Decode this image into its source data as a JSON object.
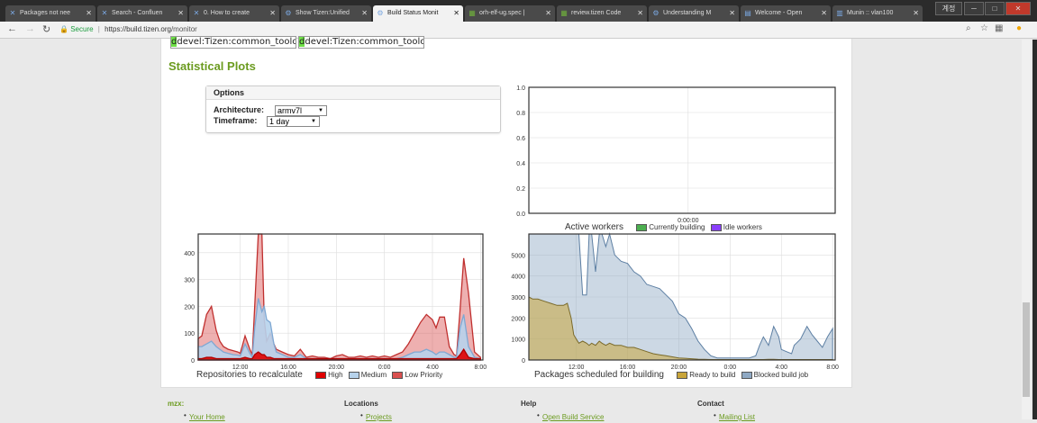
{
  "browser": {
    "tabs": [
      {
        "label": "Packages not nee",
        "icon": "X"
      },
      {
        "label": "Search - Confluen",
        "icon": "X"
      },
      {
        "label": "0. How to create",
        "icon": "X"
      },
      {
        "label": "Show Tizen:Unified",
        "icon": "gear"
      },
      {
        "label": "Build Status Monit",
        "icon": "gear"
      },
      {
        "label": "orh-elf-ug.spec |",
        "icon": "grid"
      },
      {
        "label": "review.tizen Code",
        "icon": "grid"
      },
      {
        "label": "Understanding M",
        "icon": "gear"
      },
      {
        "label": "Welcome - Open",
        "icon": "doc"
      },
      {
        "label": "Munin :: vlan100",
        "icon": "chart"
      }
    ],
    "active_tab": 4,
    "tab_close": "✕",
    "window_user": "계정",
    "secure_label": "Secure",
    "separator": "|",
    "url_host": "https://build.tizen.org",
    "url_path": "/monitor"
  },
  "page": {
    "package_fields": [
      "devel:Tizen:common_toolcha",
      "devel:Tizen:common_toolcha"
    ],
    "section_title": "Statistical Plots",
    "options": {
      "title": "Options",
      "architecture_label": "Architecture:",
      "architecture_value": "armv7l",
      "timeframe_label": "Timeframe:",
      "timeframe_value": "1 day"
    }
  },
  "colors": {
    "accent": "#6b9b1f",
    "high": "#e00000",
    "medium": "#b7d3ec",
    "low": "#d9504f",
    "ready": "#c9a53a",
    "blocked": "#8fa9c4",
    "currently_building": "#4caf50",
    "idle_workers": "#8a3ffc"
  },
  "chart_data": [
    {
      "type": "line",
      "title": "Active workers",
      "x_ticks": [
        "0:00:00"
      ],
      "ylim": [
        0,
        1.0
      ],
      "y_ticks": [
        "0.0",
        "0.2",
        "0.4",
        "0.6",
        "0.8",
        "1.0"
      ],
      "legend": [
        "Currently building",
        "Idle workers"
      ],
      "series": []
    },
    {
      "type": "area",
      "title": "Repositories to recalculate",
      "x_ticks": [
        "12:00",
        "16:00",
        "20:00",
        "0:00",
        "4:00",
        "8:00"
      ],
      "x_tick_hours": [
        12,
        16,
        20,
        24,
        28,
        32
      ],
      "xlim": [
        8.5,
        32.2
      ],
      "ylim": [
        0,
        470
      ],
      "y_ticks": [
        "0",
        "100",
        "200",
        "300",
        "400"
      ],
      "legend": [
        "High",
        "Medium",
        "Low Priority"
      ],
      "x": [
        8.5,
        8.8,
        9.2,
        9.6,
        10.0,
        10.3,
        10.6,
        11.0,
        11.4,
        11.8,
        12.0,
        12.4,
        12.8,
        13.0,
        13.2,
        13.5,
        13.8,
        14.0,
        14.2,
        14.5,
        14.8,
        15.0,
        15.5,
        16.0,
        16.5,
        17.0,
        17.5,
        18.0,
        18.5,
        19.0,
        19.5,
        20.0,
        20.5,
        21.0,
        21.5,
        22.0,
        22.5,
        23.0,
        23.5,
        24.0,
        24.5,
        25.0,
        25.5,
        26.0,
        26.5,
        27.0,
        27.5,
        28.0,
        28.3,
        28.6,
        29.0,
        29.4,
        29.8,
        30.0,
        30.3,
        30.6,
        31.0,
        31.5,
        32.0
      ],
      "series": [
        {
          "name": "Low Priority",
          "values": [
            80,
            90,
            170,
            200,
            110,
            70,
            50,
            40,
            35,
            30,
            25,
            90,
            40,
            20,
            200,
            470,
            470,
            150,
            70,
            100,
            60,
            40,
            30,
            20,
            15,
            40,
            10,
            15,
            10,
            10,
            5,
            15,
            20,
            10,
            10,
            15,
            10,
            15,
            10,
            15,
            10,
            20,
            30,
            60,
            100,
            140,
            170,
            150,
            120,
            160,
            160,
            50,
            20,
            15,
            190,
            380,
            250,
            30,
            10
          ]
        },
        {
          "name": "Medium",
          "values": [
            50,
            50,
            60,
            70,
            50,
            40,
            30,
            25,
            20,
            18,
            15,
            60,
            25,
            10,
            120,
            230,
            180,
            200,
            150,
            140,
            60,
            30,
            20,
            10,
            10,
            20,
            5,
            5,
            5,
            5,
            5,
            5,
            5,
            5,
            5,
            5,
            5,
            5,
            5,
            5,
            5,
            5,
            10,
            20,
            30,
            30,
            40,
            30,
            20,
            30,
            30,
            20,
            10,
            10,
            120,
            170,
            50,
            10,
            5
          ]
        },
        {
          "name": "High",
          "values": [
            5,
            5,
            10,
            10,
            5,
            5,
            5,
            5,
            5,
            5,
            5,
            10,
            5,
            5,
            20,
            30,
            20,
            20,
            10,
            10,
            5,
            5,
            5,
            5,
            5,
            5,
            5,
            5,
            5,
            5,
            5,
            5,
            5,
            5,
            5,
            5,
            5,
            5,
            5,
            5,
            5,
            5,
            5,
            5,
            5,
            5,
            5,
            5,
            5,
            5,
            5,
            5,
            5,
            5,
            20,
            40,
            10,
            5,
            5
          ]
        }
      ]
    },
    {
      "type": "area",
      "title": "Packages scheduled for building",
      "x_ticks": [
        "12:00",
        "16:00",
        "20:00",
        "0:00",
        "4:00",
        "8:00"
      ],
      "x_tick_hours": [
        12,
        16,
        20,
        24,
        28,
        32
      ],
      "xlim": [
        8.3,
        32.2
      ],
      "ylim": [
        0,
        6000
      ],
      "y_ticks": [
        "0",
        "1000",
        "2000",
        "3000",
        "4000",
        "5000"
      ],
      "legend": [
        "Ready to build",
        "Blocked build job"
      ],
      "x": [
        8.3,
        8.6,
        9.0,
        9.5,
        10.0,
        10.5,
        11.0,
        11.3,
        11.6,
        11.8,
        12.0,
        12.2,
        12.5,
        12.8,
        13.0,
        13.2,
        13.5,
        13.8,
        14.0,
        14.3,
        14.6,
        15.0,
        15.5,
        16.0,
        16.5,
        17.0,
        17.5,
        18.0,
        18.5,
        19.0,
        19.5,
        20.0,
        20.5,
        21.0,
        21.5,
        22.0,
        22.5,
        23.0,
        23.5,
        24.0,
        24.5,
        25.0,
        25.5,
        26.0,
        26.3,
        26.6,
        27.0,
        27.4,
        27.8,
        28.0,
        28.4,
        28.8,
        29.0,
        29.5,
        30.0,
        30.4,
        30.8,
        31.2,
        31.6,
        32.0
      ],
      "series": [
        {
          "name": "Ready to build",
          "values": [
            3000,
            2900,
            2900,
            2800,
            2700,
            2600,
            2600,
            2700,
            2000,
            1200,
            1000,
            800,
            900,
            800,
            700,
            800,
            700,
            900,
            800,
            700,
            800,
            700,
            700,
            600,
            600,
            500,
            400,
            300,
            250,
            200,
            150,
            100,
            80,
            60,
            40,
            30,
            20,
            20,
            20,
            20,
            20,
            20,
            20,
            20,
            20,
            20,
            30,
            30,
            20,
            20,
            20,
            20,
            20,
            20,
            20,
            20,
            20,
            20,
            20,
            20
          ]
        },
        {
          "name": "Blocked build job",
          "values": [
            6000,
            6000,
            6000,
            6000,
            6000,
            6000,
            6000,
            6000,
            6000,
            6000,
            6000,
            6000,
            3100,
            3100,
            6000,
            6000,
            4200,
            6000,
            6000,
            5400,
            6000,
            5000,
            4700,
            4600,
            4200,
            4000,
            3600,
            3500,
            3400,
            3100,
            2800,
            2200,
            2000,
            1500,
            900,
            500,
            200,
            100,
            100,
            100,
            100,
            100,
            100,
            200,
            700,
            1100,
            700,
            1600,
            1100,
            500,
            400,
            300,
            700,
            1000,
            1600,
            1200,
            900,
            600,
            1100,
            1500
          ]
        }
      ]
    }
  ],
  "footer": {
    "columns": [
      {
        "title": "mzx:",
        "link": "Your Home"
      },
      {
        "title": "Locations",
        "link": "Projects"
      },
      {
        "title": "Help",
        "link": "Open Build Service"
      },
      {
        "title": "Contact",
        "link": "Mailing List"
      }
    ]
  }
}
